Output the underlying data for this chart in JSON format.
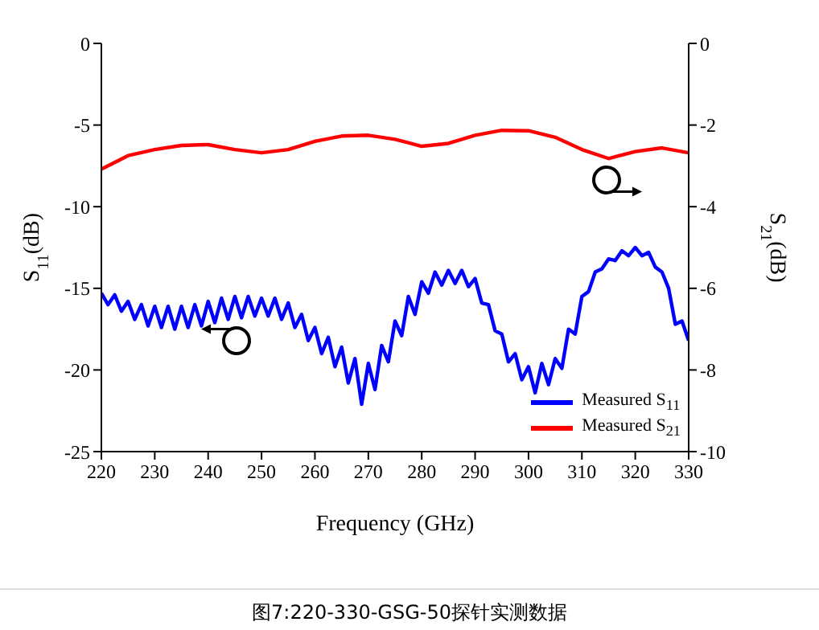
{
  "chart_data": {
    "type": "line",
    "title": "图7:220-330-GSG-50探针实测数据",
    "xlabel": "Frequency (GHz)",
    "ylabel": "S$_{11}$(dB)",
    "y2label": "S$_{21}$(dB)",
    "xlim": [
      220,
      330
    ],
    "xticks": [
      220,
      230,
      240,
      250,
      260,
      270,
      280,
      290,
      300,
      310,
      320,
      330
    ],
    "ylim": [
      -25,
      0
    ],
    "yticks": [
      -25,
      -20,
      -15,
      -10,
      -5,
      0
    ],
    "y2lim": [
      -10,
      0
    ],
    "y2ticks": [
      -10,
      -8,
      -6,
      -4,
      -2,
      0
    ],
    "legend": "bottom right",
    "marker": "none",
    "line_style": "solid",
    "series": [
      {
        "name": "Measured S$_{11}$",
        "color": "#0000ff",
        "x": [
          220,
          221.25,
          222.5,
          223.75,
          225,
          226.25,
          227.5,
          228.75,
          230,
          231.25,
          232.5,
          233.75,
          235,
          236.25,
          237.5,
          238.75,
          240,
          241.25,
          242.5,
          243.75,
          245,
          246.25,
          247.5,
          248.75,
          250,
          251.25,
          252.5,
          253.75,
          255,
          256.25,
          257.5,
          258.75,
          260,
          261.25,
          262.5,
          263.75,
          265,
          266.25,
          267.5,
          268.75,
          270,
          271.25,
          272.5,
          273.75,
          275,
          276.25,
          277.5,
          278.75,
          280,
          281.25,
          282.5,
          283.75,
          285,
          286.25,
          287.5,
          288.75,
          290,
          291.25,
          292.5,
          293.75,
          295,
          296.25,
          297.5,
          298.75,
          300,
          301.25,
          302.5,
          303.75,
          305,
          306.25,
          307.5,
          308.75,
          310,
          311.25,
          312.5,
          313.75,
          315,
          316.25,
          317.5,
          318.75,
          320,
          321.25,
          322.5,
          323.75,
          325,
          326.25,
          327.5,
          328.75,
          330
        ],
        "values": [
          -15.3,
          -16.0,
          -15.4,
          -16.4,
          -15.8,
          -16.9,
          -16.0,
          -17.3,
          -16.1,
          -17.4,
          -16.1,
          -17.5,
          -16.1,
          -17.4,
          -16.0,
          -17.3,
          -15.8,
          -17.1,
          -15.6,
          -16.9,
          -15.5,
          -16.8,
          -15.5,
          -16.7,
          -15.6,
          -16.7,
          -15.6,
          -16.9,
          -15.9,
          -17.4,
          -16.6,
          -18.2,
          -17.4,
          -19.0,
          -18.0,
          -19.8,
          -18.6,
          -20.8,
          -19.3,
          -22.1,
          -19.6,
          -21.2,
          -18.5,
          -19.5,
          -17.0,
          -17.9,
          -15.5,
          -16.6,
          -14.6,
          -15.3,
          -14.0,
          -14.8,
          -13.9,
          -14.7,
          -13.9,
          -14.9,
          -14.4,
          -15.9,
          -16.0,
          -17.6,
          -17.8,
          -19.5,
          -19.0,
          -20.6,
          -19.8,
          -21.4,
          -19.6,
          -20.9,
          -19.3,
          -19.9,
          -17.5,
          -17.8,
          -15.5,
          -15.2,
          -14.0,
          -13.8,
          -13.2,
          -13.3,
          -12.7,
          -13.0,
          -12.5,
          -13.0,
          -12.8,
          -13.7,
          -14.0,
          -15.0,
          -17.2,
          -17.0,
          -18.2
        ]
      },
      {
        "name": "Measured S$_{21}$",
        "color": "#ff0000",
        "axis": "y2",
        "x": [
          220,
          225,
          230,
          235,
          240,
          245,
          250,
          255,
          260,
          265,
          270,
          275,
          280,
          285,
          290,
          295,
          300,
          305,
          310,
          315,
          320,
          325,
          330
        ],
        "values": [
          -3.08,
          -2.75,
          -2.6,
          -2.5,
          -2.48,
          -2.6,
          -2.68,
          -2.6,
          -2.4,
          -2.27,
          -2.25,
          -2.35,
          -2.52,
          -2.45,
          -2.25,
          -2.13,
          -2.14,
          -2.3,
          -2.6,
          -2.82,
          -2.65,
          -2.56,
          -2.68
        ]
      }
    ]
  }
}
